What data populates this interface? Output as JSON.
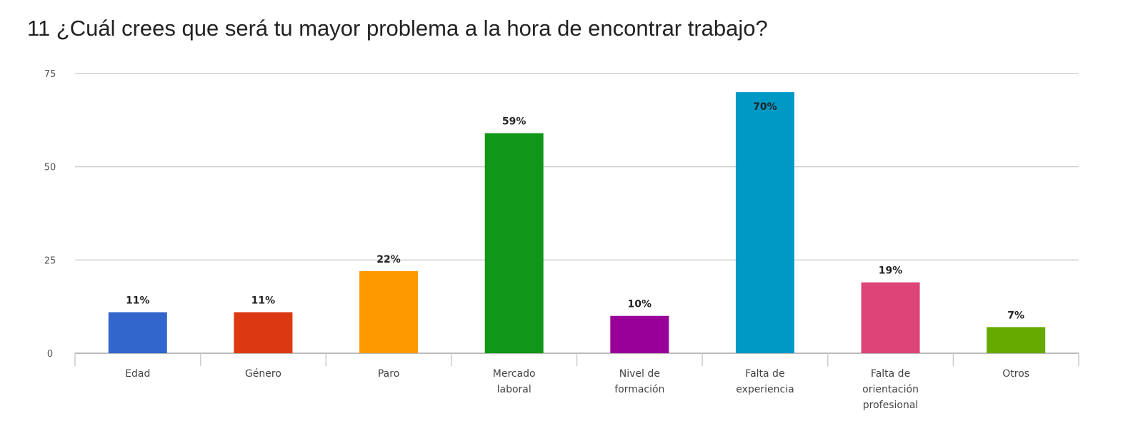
{
  "chart_data": {
    "type": "bar",
    "title": "11 ¿Cuál crees que será tu mayor problema a la hora de encontrar trabajo?",
    "xlabel": "",
    "ylabel": "",
    "ylim": [
      0,
      75
    ],
    "yticks": [
      0,
      25,
      50,
      75
    ],
    "grid": true,
    "categories": [
      [
        "Edad"
      ],
      [
        "Género"
      ],
      [
        "Paro"
      ],
      [
        "Mercado",
        "laboral"
      ],
      [
        "Nivel de",
        "formación"
      ],
      [
        "Falta de",
        "experiencia"
      ],
      [
        "Falta de",
        "orientación",
        "profesional"
      ],
      [
        "Otros"
      ]
    ],
    "values": [
      11,
      11,
      22,
      59,
      10,
      70,
      19,
      7
    ],
    "labels": [
      "11%",
      "11%",
      "22%",
      "59%",
      "10%",
      "70%",
      "19%",
      "7%"
    ],
    "colors": [
      "#3366cc",
      "#dc3912",
      "#ff9900",
      "#109618",
      "#990099",
      "#0099c6",
      "#dd4477",
      "#66aa00"
    ]
  }
}
